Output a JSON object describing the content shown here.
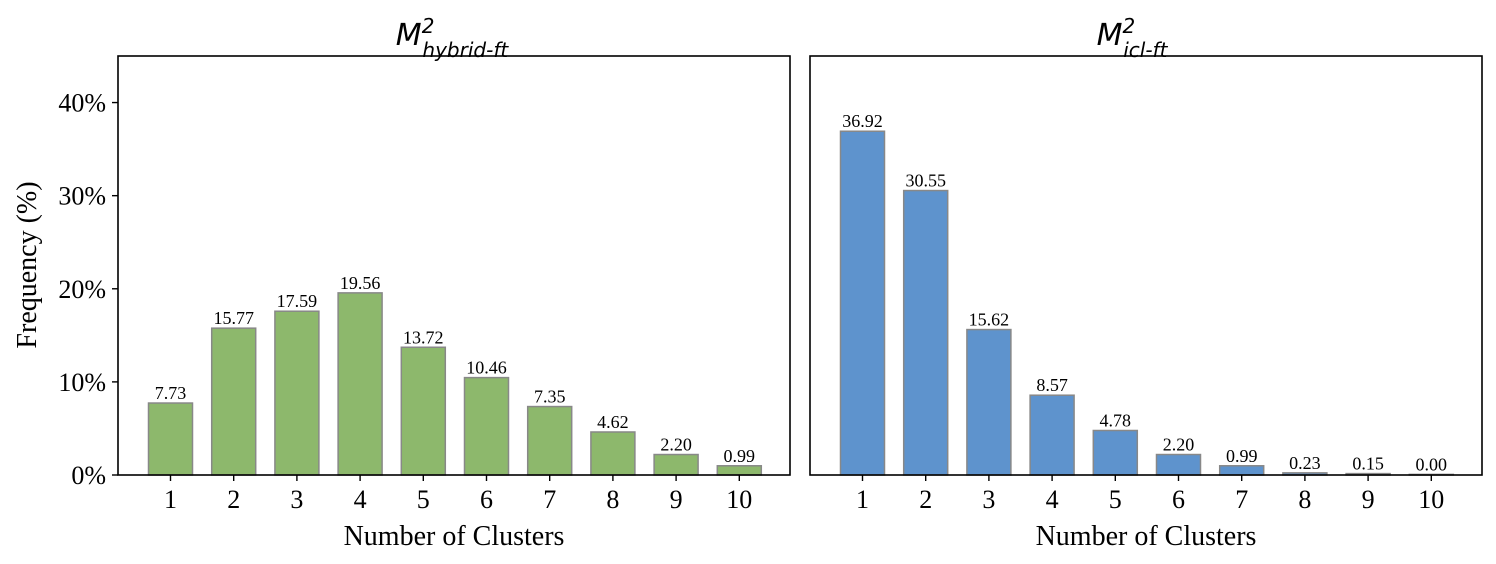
{
  "chart_data": [
    {
      "type": "bar",
      "title": {
        "main": "M",
        "sup": "2",
        "sub": "hybrid-ft"
      },
      "xlabel": "Number of Clusters",
      "ylabel": "Frequency (%)",
      "ylim": [
        0,
        45
      ],
      "yticks": [
        0,
        10,
        20,
        30,
        40
      ],
      "ytick_labels": [
        "0%",
        "10%",
        "20%",
        "30%",
        "40%"
      ],
      "categories": [
        "1",
        "2",
        "3",
        "4",
        "5",
        "6",
        "7",
        "8",
        "9",
        "10"
      ],
      "values": [
        7.73,
        15.77,
        17.59,
        19.56,
        13.72,
        10.46,
        7.35,
        4.62,
        2.2,
        0.99
      ],
      "value_labels": [
        "7.73",
        "15.77",
        "17.59",
        "19.56",
        "13.72",
        "10.46",
        "7.35",
        "4.62",
        "2.20",
        "0.99"
      ],
      "bar_color": "#8db86c",
      "edge_color": "#888888",
      "grid": false
    },
    {
      "type": "bar",
      "title": {
        "main": "M",
        "sup": "2",
        "sub": "icl-ft"
      },
      "xlabel": "Number of Clusters",
      "ylabel": "",
      "ylim": [
        0,
        45
      ],
      "categories": [
        "1",
        "2",
        "3",
        "4",
        "5",
        "6",
        "7",
        "8",
        "9",
        "10"
      ],
      "values": [
        36.92,
        30.55,
        15.62,
        8.57,
        4.78,
        2.2,
        0.99,
        0.23,
        0.15,
        0.0
      ],
      "value_labels": [
        "36.92",
        "30.55",
        "15.62",
        "8.57",
        "4.78",
        "2.20",
        "0.99",
        "0.23",
        "0.15",
        "0.00"
      ],
      "bar_color": "#5e93cd",
      "edge_color": "#888888",
      "grid": false
    }
  ]
}
